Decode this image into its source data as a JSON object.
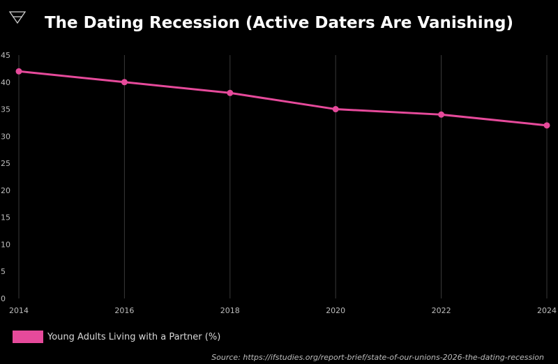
{
  "page": {
    "title": "The Dating Recession (Active Daters Are Vanishing)",
    "source": "Source: https://ifstudies.org/report-brief/state-of-our-unions-2026-the-dating-recession",
    "logo_icon": "triangle-logo-icon"
  },
  "colors": {
    "background": "#000000",
    "series": "#e64a9b",
    "grid": "#3a3a3a",
    "tick_text": "#bdbdbd"
  },
  "chart_data": {
    "type": "line",
    "title": "The Dating Recession (Active Daters Are Vanishing)",
    "xlabel": "",
    "ylabel": "",
    "x": [
      "2014",
      "2016",
      "2018",
      "2020",
      "2022",
      "2024"
    ],
    "series": [
      {
        "name": "Young Adults Living with a Partner (%)",
        "values": [
          42,
          40,
          38,
          35,
          34,
          32
        ],
        "color": "#e64a9b"
      }
    ],
    "ylim": [
      0,
      45
    ],
    "yticks": [
      "0",
      "5",
      "10",
      "15",
      "20",
      "25",
      "30",
      "35",
      "40",
      "45"
    ],
    "grid": "vertical",
    "legend": "bottom-left"
  }
}
